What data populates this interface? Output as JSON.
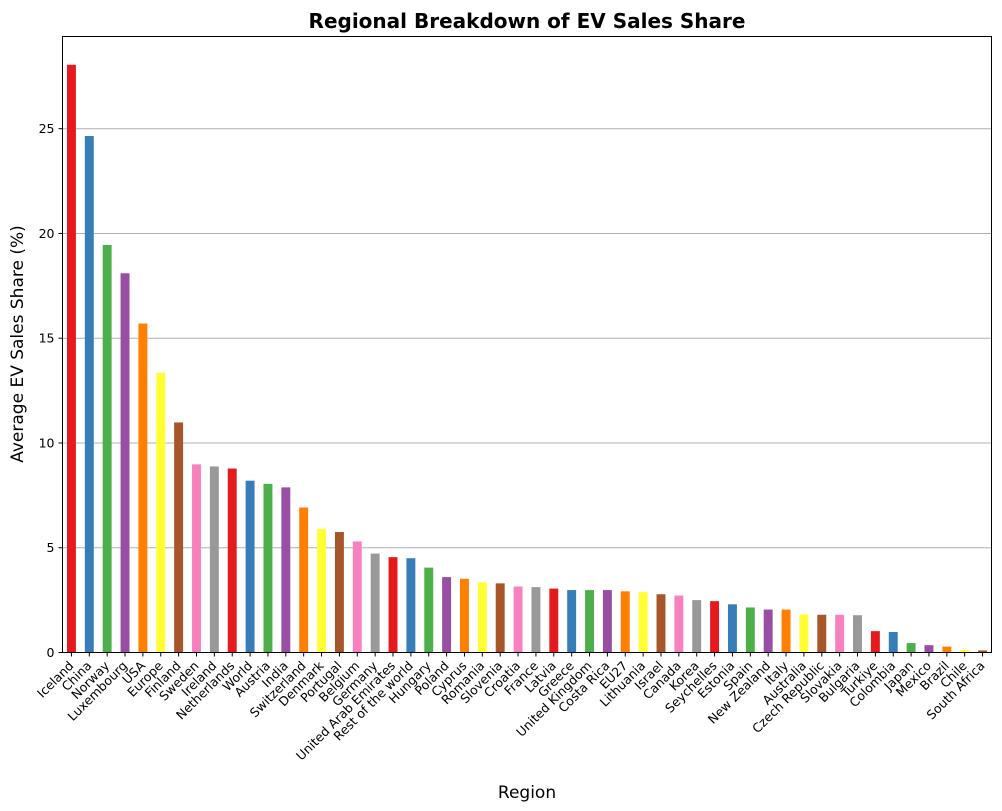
{
  "chart_data": {
    "type": "bar",
    "title": "Regional Breakdown of EV Sales Share",
    "xlabel": "Region",
    "ylabel": "Average EV Sales Share (%)",
    "ylim": [
      0,
      29.4
    ],
    "yticks": [
      0,
      5,
      10,
      15,
      20,
      25
    ],
    "grid": "y",
    "categories": [
      "Iceland",
      "China",
      "Norway",
      "Luxembourg",
      "USA",
      "Europe",
      "Finland",
      "Sweden",
      "Ireland",
      "Netherlands",
      "World",
      "Austria",
      "India",
      "Switzerland",
      "Denmark",
      "Portugal",
      "Belgium",
      "Germany",
      "United Arab Emirates",
      "Rest of the world",
      "Hungary",
      "Poland",
      "Cyprus",
      "Romania",
      "Slovenia",
      "Croatia",
      "France",
      "Latvia",
      "Greece",
      "United Kingdom",
      "Costa Rica",
      "EU27",
      "Lithuania",
      "Israel",
      "Canada",
      "Korea",
      "Seychelles",
      "Estonia",
      "Spain",
      "New Zealand",
      "Italy",
      "Australia",
      "Czech Republic",
      "Slovakia",
      "Bulgaria",
      "Turkiye",
      "Colombia",
      "Japan",
      "Mexico",
      "Brazil",
      "Chile",
      "South Africa"
    ],
    "values": [
      28.05,
      24.65,
      19.45,
      18.1,
      15.7,
      13.35,
      10.98,
      8.98,
      8.88,
      8.78,
      8.2,
      8.05,
      7.88,
      6.92,
      5.9,
      5.75,
      5.3,
      4.72,
      4.55,
      4.5,
      4.05,
      3.6,
      3.52,
      3.35,
      3.3,
      3.15,
      3.12,
      3.05,
      2.98,
      2.98,
      2.98,
      2.92,
      2.88,
      2.78,
      2.72,
      2.5,
      2.45,
      2.3,
      2.15,
      2.05,
      2.05,
      1.82,
      1.8,
      1.8,
      1.78,
      1.02,
      0.98,
      0.45,
      0.35,
      0.28,
      0.12,
      0.1
    ],
    "palette": [
      "#e41a1c",
      "#377eb8",
      "#4daf4a",
      "#984ea3",
      "#ff7f00",
      "#ffff33",
      "#a65628",
      "#f781bf",
      "#999999"
    ]
  }
}
